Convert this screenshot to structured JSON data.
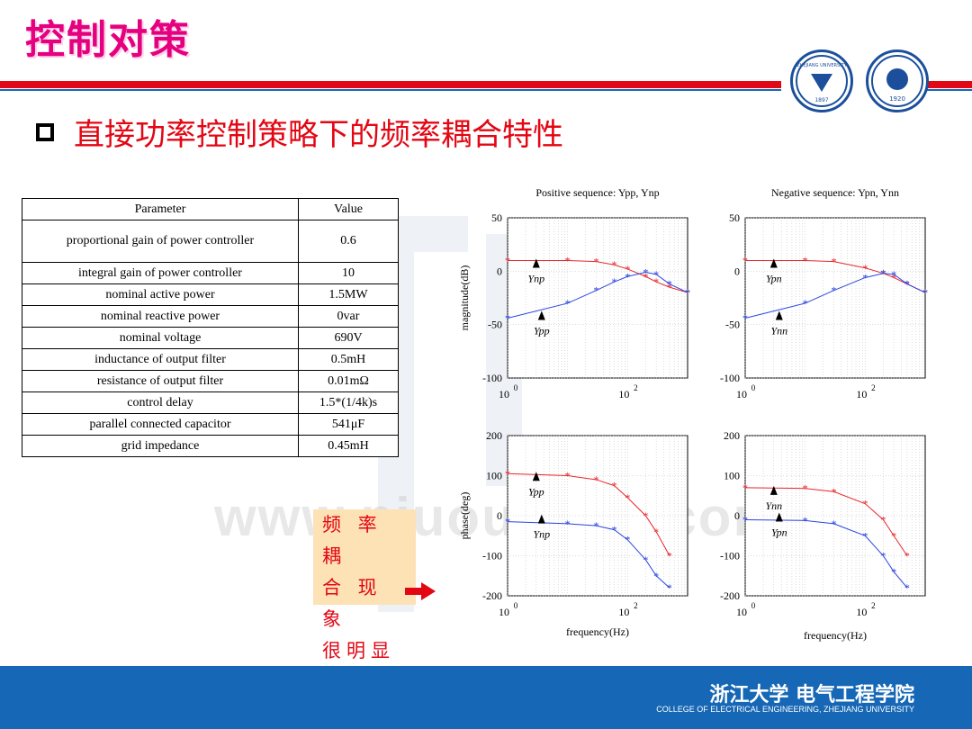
{
  "slide": {
    "title": "控制对策",
    "subtitle": "直接功率控制策略下的频率耦合特性"
  },
  "logos": [
    {
      "text": "ZHEJIANG UNIVERSITY",
      "year": "1897"
    },
    {
      "text": "电气工程学院",
      "year": "1920"
    }
  ],
  "table": {
    "headers": [
      "Parameter",
      "Value"
    ],
    "rows": [
      [
        "proportional gain of power controller",
        "0.6"
      ],
      [
        "integral gain of power controller",
        "10"
      ],
      [
        "nominal active power",
        "1.5MW"
      ],
      [
        "nominal reactive power",
        "0var"
      ],
      [
        "nominal voltage",
        "690V"
      ],
      [
        "inductance of output filter",
        "0.5mH"
      ],
      [
        "resistance of output filter",
        "0.01mΩ"
      ],
      [
        "control delay",
        "1.5*(1/4k)s"
      ],
      [
        "parallel connected capacitor",
        "541μF"
      ],
      [
        "grid impedance",
        "0.45mH"
      ]
    ]
  },
  "callout": {
    "lines": [
      "频 率 耦",
      "合 现 象",
      "很明显"
    ]
  },
  "plots": {
    "titles": [
      "Positive sequence: ",
      "Negative sequence: "
    ],
    "title_y": [
      "Ypp, Ynp",
      "Ypn, Ynn"
    ],
    "ylabel_mag": "magnitude(dB)",
    "ylabel_phase": "phase(deg)",
    "xlabel": "frequency(Hz)",
    "mag_ticks": [
      "50",
      "0",
      "-50",
      "-100"
    ],
    "phase_ticks": [
      "200",
      "100",
      "0",
      "-100",
      "-200"
    ],
    "x_ticks": [
      "10",
      "10"
    ],
    "x_exp": [
      "0",
      "2"
    ],
    "labels": {
      "pos_mag": [
        "Ynp",
        "Ypp"
      ],
      "neg_mag": [
        "Ypn",
        "Ynn"
      ],
      "pos_phase": [
        "Ypp",
        "Ynp"
      ],
      "neg_phase": [
        "Ynn",
        "Ypn"
      ]
    }
  },
  "chart_data": [
    {
      "type": "line",
      "title": "Positive sequence: Ypp, Ynp",
      "xlabel": "",
      "ylabel": "magnitude(dB)",
      "xscale": "log",
      "xlim": [
        1,
        1000
      ],
      "ylim": [
        -100,
        50
      ],
      "series": [
        {
          "name": "Ynp",
          "x": [
            1,
            10,
            30,
            60,
            100,
            200,
            300,
            500,
            1000
          ],
          "values": [
            10,
            10,
            9,
            6,
            2,
            -5,
            -10,
            -15,
            -20
          ]
        },
        {
          "name": "Ypp",
          "x": [
            1,
            10,
            30,
            60,
            100,
            200,
            300,
            500,
            1000
          ],
          "values": [
            -44,
            -30,
            -18,
            -10,
            -5,
            -1,
            -3,
            -12,
            -20
          ]
        }
      ]
    },
    {
      "type": "line",
      "title": "Negative sequence: Ypn, Ynn",
      "xlabel": "",
      "ylabel": "",
      "xscale": "log",
      "xlim": [
        1,
        1000
      ],
      "ylim": [
        -100,
        50
      ],
      "series": [
        {
          "name": "Ypn",
          "x": [
            1,
            10,
            30,
            100,
            200,
            300,
            500,
            1000
          ],
          "values": [
            10,
            10,
            9,
            3,
            -2,
            -6,
            -12,
            -20
          ]
        },
        {
          "name": "Ynn",
          "x": [
            1,
            10,
            30,
            100,
            200,
            300,
            500,
            1000
          ],
          "values": [
            -44,
            -30,
            -18,
            -6,
            -2,
            -3,
            -12,
            -20
          ]
        }
      ]
    },
    {
      "type": "line",
      "title": "",
      "xlabel": "frequency(Hz)",
      "ylabel": "phase(deg)",
      "xscale": "log",
      "xlim": [
        1,
        1000
      ],
      "ylim": [
        -200,
        200
      ],
      "series": [
        {
          "name": "Ypp",
          "x": [
            1,
            10,
            30,
            60,
            100,
            200,
            300,
            500
          ],
          "values": [
            105,
            100,
            90,
            75,
            45,
            0,
            -40,
            -100
          ]
        },
        {
          "name": "Ynp",
          "x": [
            1,
            10,
            30,
            60,
            100,
            200,
            300,
            500
          ],
          "values": [
            -15,
            -20,
            -25,
            -35,
            -60,
            -110,
            -150,
            -180
          ]
        }
      ]
    },
    {
      "type": "line",
      "title": "",
      "xlabel": "frequency(Hz)",
      "ylabel": "",
      "xscale": "log",
      "xlim": [
        1,
        1000
      ],
      "ylim": [
        -200,
        200
      ],
      "series": [
        {
          "name": "Ynn",
          "x": [
            1,
            10,
            30,
            100,
            200,
            300,
            500
          ],
          "values": [
            70,
            68,
            60,
            30,
            -10,
            -50,
            -100
          ]
        },
        {
          "name": "Ypn",
          "x": [
            1,
            10,
            30,
            100,
            200,
            300,
            500
          ],
          "values": [
            -10,
            -12,
            -20,
            -50,
            -100,
            -140,
            -180
          ]
        }
      ]
    }
  ],
  "footer": {
    "cn": "浙江大学 电气工程学院",
    "en": "COLLEGE OF ELECTRICAL ENGINEERING, ZHEJIANG UNIVERSITY"
  },
  "colors": {
    "title": "#e5007f",
    "subtitle": "#e30613",
    "band_blue": "#1667b5",
    "series_red": "#e8262b",
    "series_blue": "#2844e0"
  }
}
